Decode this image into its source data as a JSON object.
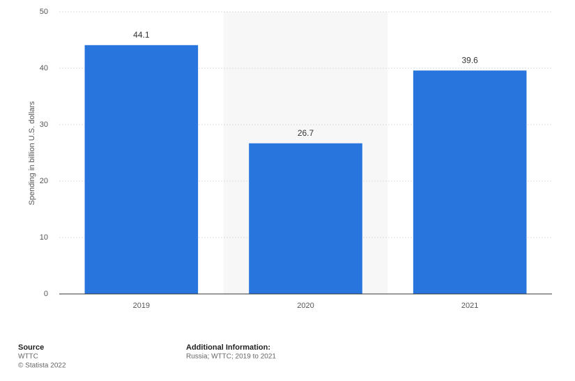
{
  "chart_data": {
    "type": "bar",
    "y_label": "Spending in billion U.S. dollars",
    "categories": [
      "2019",
      "2020",
      "2021"
    ],
    "values": [
      44.1,
      26.7,
      39.6
    ],
    "color": "#2775dd",
    "ylim": [
      0,
      50
    ],
    "yticks": [
      0,
      10,
      20,
      30,
      40,
      50
    ],
    "grid": true
  },
  "footer": {
    "source_title": "Source",
    "source": "WTTC",
    "copyright": "© Statista 2022",
    "info_title": "Additional Information:",
    "info": "Russia; WTTC; 2019 to 2021"
  }
}
